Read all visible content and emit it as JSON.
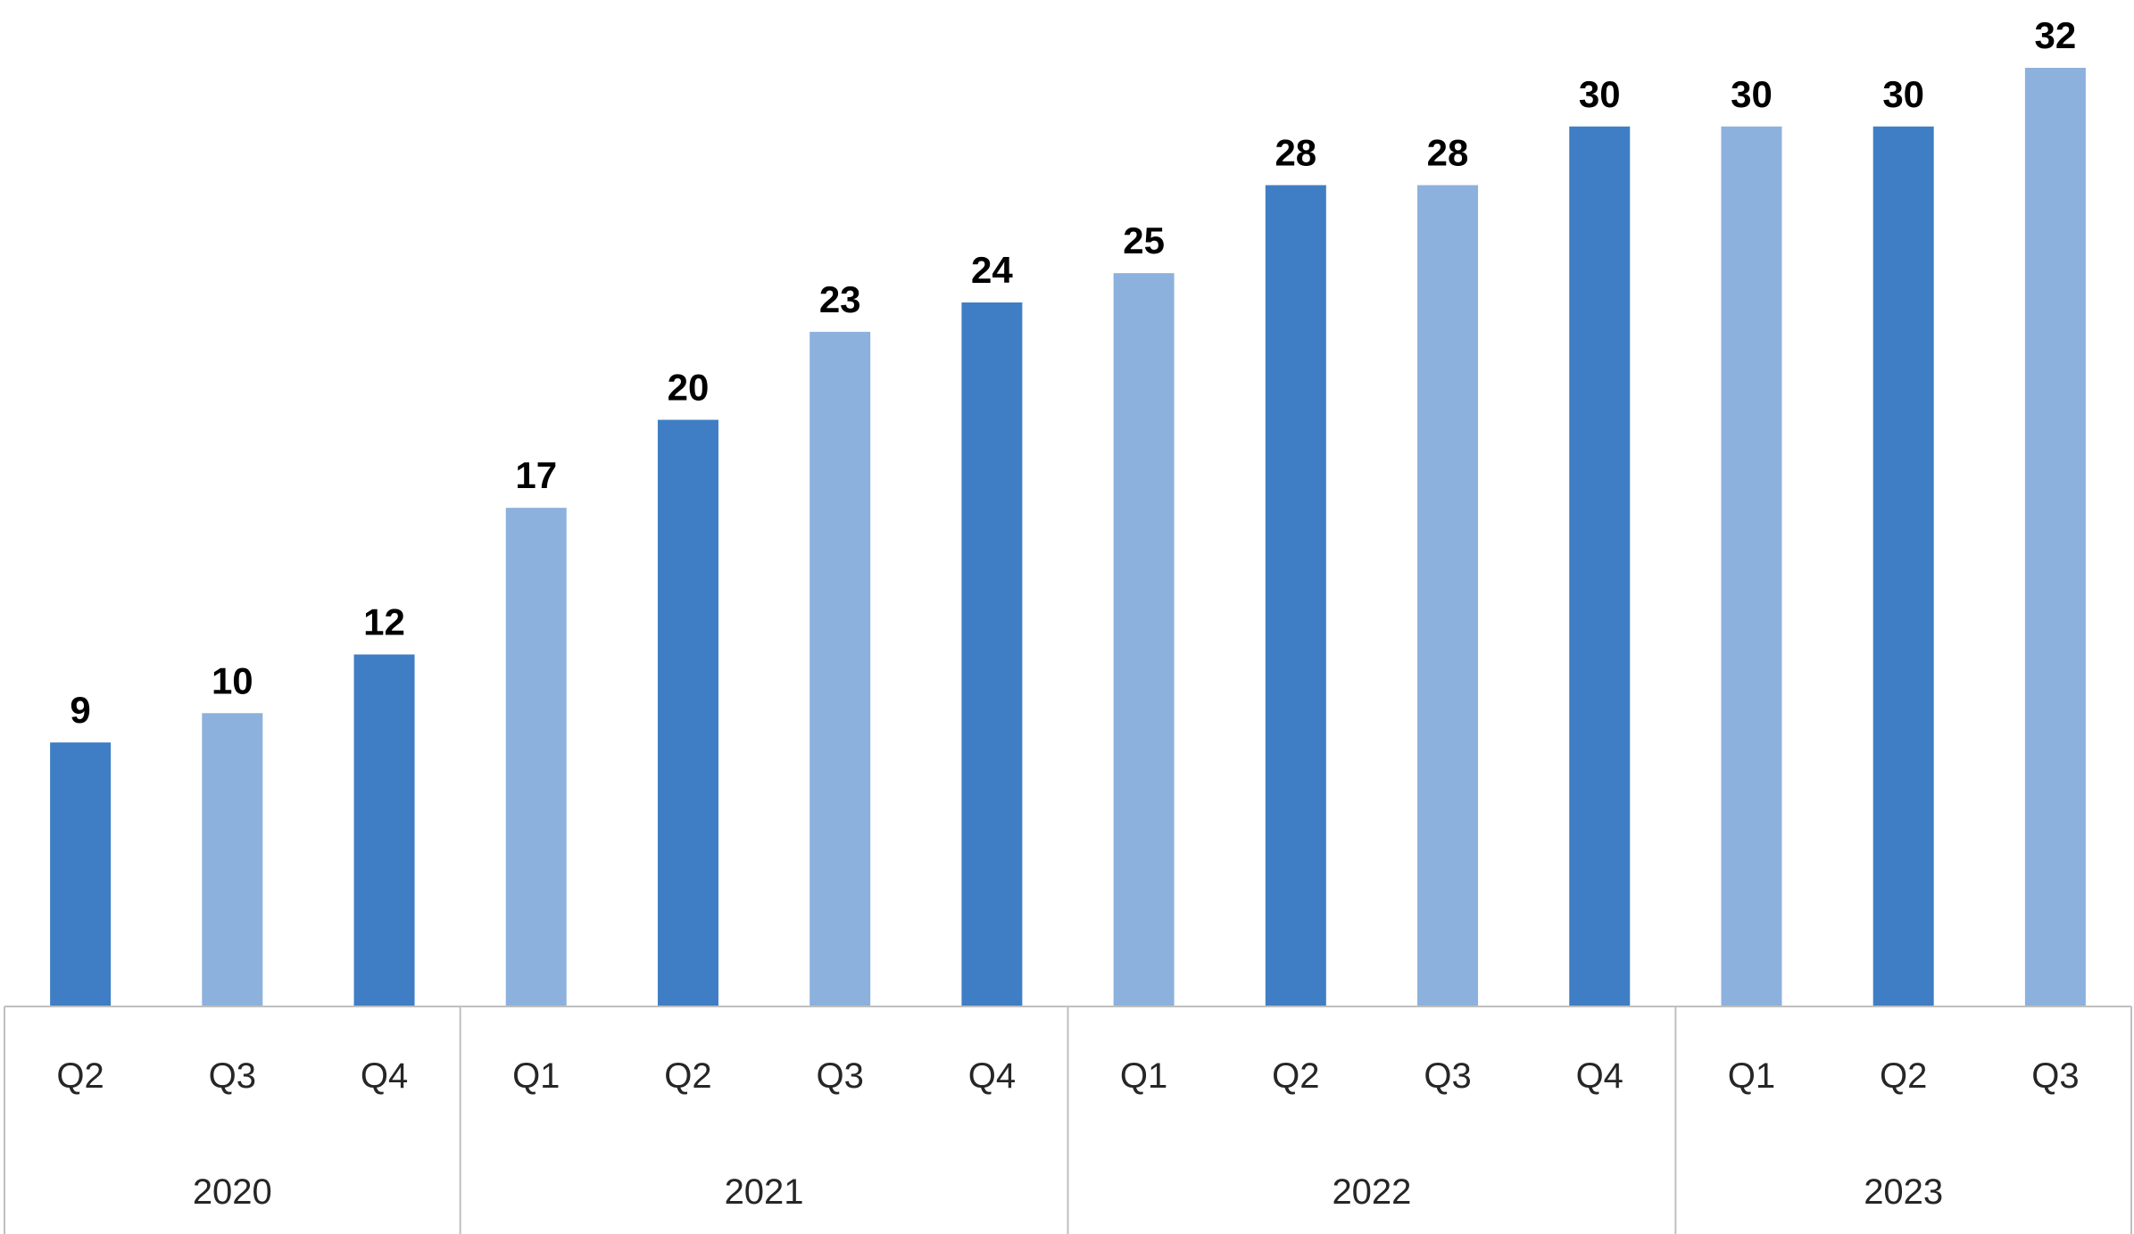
{
  "chart_data": {
    "type": "bar",
    "title": "",
    "xlabel": "",
    "ylabel": "",
    "ylim": [
      0,
      32
    ],
    "grid": false,
    "legend": "none",
    "categories": [
      "Q2",
      "Q3",
      "Q4",
      "Q1",
      "Q2",
      "Q3",
      "Q4",
      "Q1",
      "Q2",
      "Q3",
      "Q4",
      "Q1",
      "Q2",
      "Q3"
    ],
    "groups": [
      {
        "label": "2020",
        "count": 3
      },
      {
        "label": "2021",
        "count": 4
      },
      {
        "label": "2022",
        "count": 4
      },
      {
        "label": "2023",
        "count": 3
      }
    ],
    "series": [
      {
        "values": [
          9,
          10,
          12,
          17,
          20,
          23,
          24,
          25,
          28,
          28,
          30,
          30,
          30,
          32
        ]
      }
    ],
    "data_labels": [
      "9",
      "10",
      "12",
      "17",
      "20",
      "23",
      "24",
      "25",
      "28",
      "28",
      "30",
      "30",
      "30",
      "32"
    ],
    "colors": {
      "dark": "#3f7ec4",
      "light": "#8db1dd"
    },
    "bar_colors": [
      "dark",
      "light",
      "dark",
      "light",
      "dark",
      "light",
      "dark",
      "light",
      "dark",
      "light",
      "dark",
      "light",
      "dark",
      "light"
    ]
  }
}
